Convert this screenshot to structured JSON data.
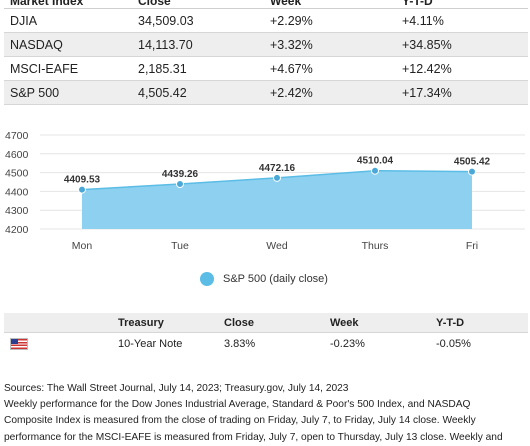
{
  "index_table": {
    "headers": [
      "Market Index",
      "Close",
      "Week",
      "Y-T-D"
    ],
    "rows": [
      [
        "DJIA",
        "34,509.03",
        "+2.29%",
        "+4.11%"
      ],
      [
        "NASDAQ",
        "14,113.70",
        "+3.32%",
        "+34.85%"
      ],
      [
        "MSCI-EAFE",
        "2,185.31",
        "+4.67%",
        "+12.42%"
      ],
      [
        "S&P 500",
        "4,505.42",
        "+2.42%",
        "+17.34%"
      ]
    ]
  },
  "chart_data": {
    "type": "area",
    "categories": [
      "Mon",
      "Tue",
      "Wed",
      "Thurs",
      "Fri"
    ],
    "series": [
      {
        "name": "S&P 500 (daily close)",
        "values": [
          4409.53,
          4439.26,
          4472.16,
          4510.04,
          4505.42
        ],
        "labels": [
          "4409.53",
          "4439.26",
          "4472.16",
          "4510.04",
          "4505.42"
        ]
      }
    ],
    "yticks": [
      4700,
      4600,
      4500,
      4400,
      4300,
      4200
    ],
    "ylim": [
      4200,
      4700
    ],
    "title": "",
    "xlabel": "",
    "ylabel": "",
    "legend_position": "bottom",
    "colors": {
      "fill": "#8ed0ef",
      "line": "#5bbde6",
      "point": "#4aa8d8"
    }
  },
  "treasury_table": {
    "headers": [
      "",
      "Treasury",
      "Close",
      "Week",
      "Y-T-D"
    ],
    "flag_icon": "us-flag-icon",
    "row": [
      "",
      "10-Year Note",
      "3.83%",
      "-0.23%",
      "-0.05%"
    ]
  },
  "notes": {
    "sources": "Sources: The Wall Street Journal, July 14, 2023; Treasury.gov, July 14, 2023",
    "line2": "Weekly performance for the Dow Jones Industrial Average, Standard & Poor's 500 Index, and NASDAQ",
    "line3": "Composite Index is measured from the close of trading on Friday, July 7, to Friday, July 14 close. Weekly",
    "line4": "performance for the MSCI-EAFE is measured from Friday, July 7, open to Thursday, July 13 close. Weekly and"
  }
}
